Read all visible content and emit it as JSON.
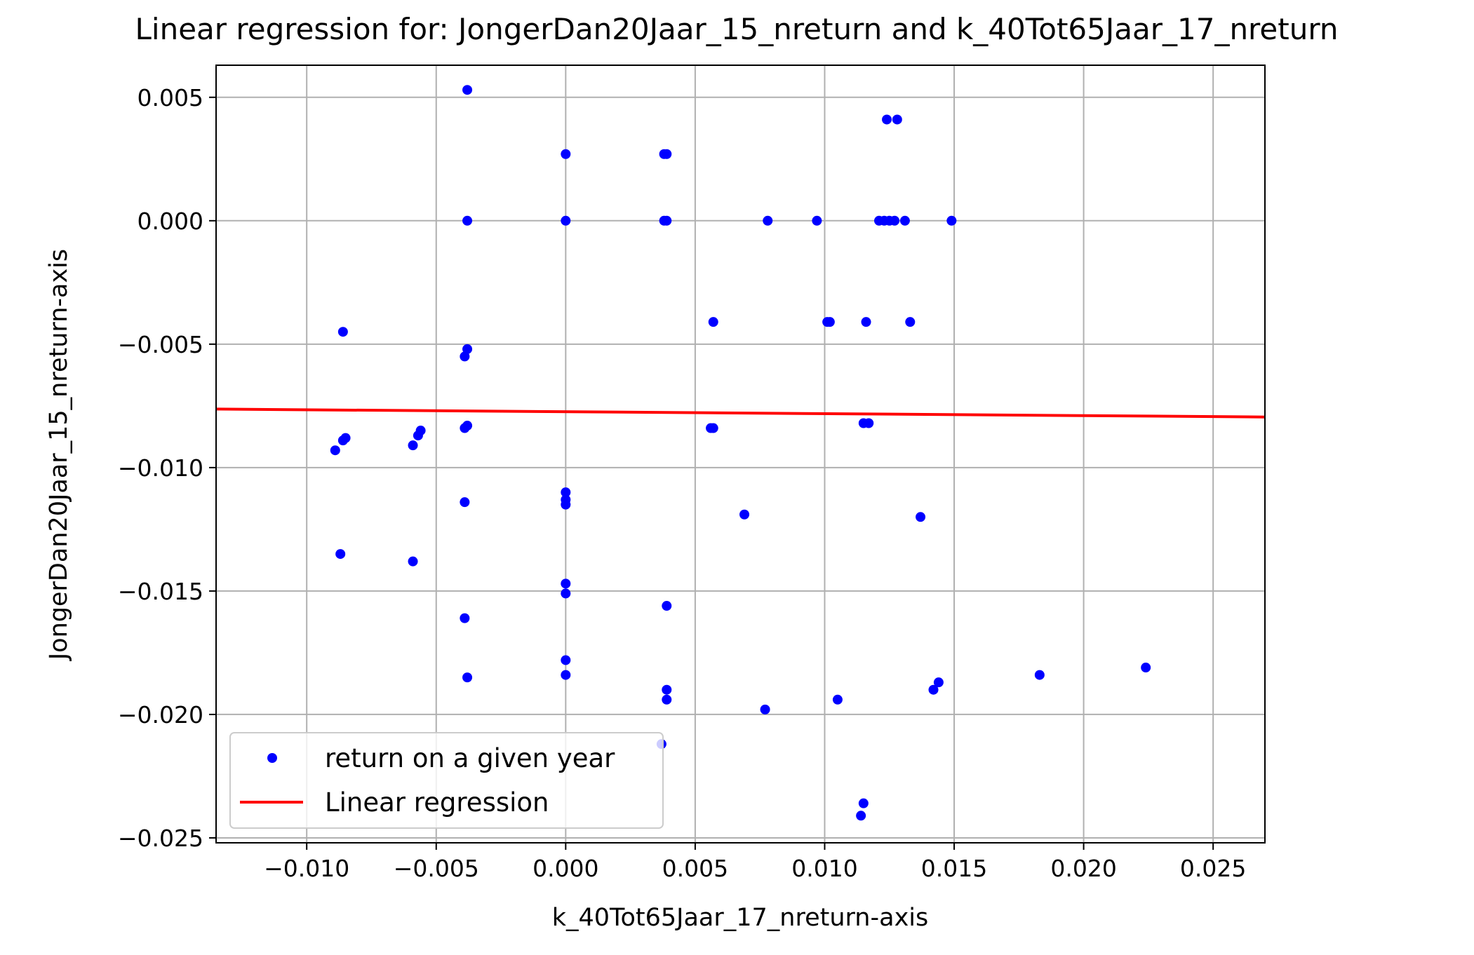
{
  "chart_data": {
    "type": "scatter",
    "title": "Linear regression for: JongerDan20Jaar_15_nreturn and k_40Tot65Jaar_17_nreturn",
    "xlabel": "k_40Tot65Jaar_17_nreturn-axis",
    "ylabel": "JongerDan20Jaar_15_nreturn-axis",
    "xlim": [
      -0.0135,
      0.027
    ],
    "ylim": [
      -0.0252,
      0.0063
    ],
    "xticks": [
      -0.01,
      -0.005,
      0.0,
      0.005,
      0.01,
      0.015,
      0.02,
      0.025
    ],
    "xtick_labels": [
      "−0.010",
      "−0.005",
      "0.000",
      "0.005",
      "0.010",
      "0.015",
      "0.020",
      "0.025"
    ],
    "yticks": [
      0.005,
      0.0,
      -0.005,
      -0.01,
      -0.015,
      -0.02,
      -0.025
    ],
    "ytick_labels": [
      "0.005",
      "0.000",
      "−0.005",
      "−0.010",
      "−0.015",
      "−0.020",
      "−0.025"
    ],
    "grid": true,
    "legend_position": "lower-left",
    "series": [
      {
        "name": "return on a given year",
        "kind": "scatter",
        "color": "#0000ff",
        "points": [
          [
            -0.0038,
            0.0053
          ],
          [
            0.0,
            0.0027
          ],
          [
            0.0038,
            0.0027
          ],
          [
            0.0039,
            0.0027
          ],
          [
            0.0124,
            0.0041
          ],
          [
            0.0128,
            0.0041
          ],
          [
            -0.0038,
            0.0
          ],
          [
            0.0,
            0.0
          ],
          [
            0.0038,
            0.0
          ],
          [
            0.0039,
            0.0
          ],
          [
            0.0078,
            0.0
          ],
          [
            0.0097,
            0.0
          ],
          [
            0.0121,
            0.0
          ],
          [
            0.0123,
            0.0
          ],
          [
            0.0125,
            0.0
          ],
          [
            0.0127,
            0.0
          ],
          [
            0.0131,
            0.0
          ],
          [
            0.0149,
            0.0
          ],
          [
            -0.0086,
            -0.0045
          ],
          [
            0.0057,
            -0.0041
          ],
          [
            0.0101,
            -0.0041
          ],
          [
            0.0102,
            -0.0041
          ],
          [
            0.0116,
            -0.0041
          ],
          [
            0.0133,
            -0.0041
          ],
          [
            -0.0038,
            -0.0052
          ],
          [
            -0.0039,
            -0.0055
          ],
          [
            -0.0089,
            -0.0093
          ],
          [
            -0.0086,
            -0.0089
          ],
          [
            -0.0085,
            -0.0088
          ],
          [
            -0.0059,
            -0.0091
          ],
          [
            -0.0057,
            -0.0087
          ],
          [
            -0.0056,
            -0.0085
          ],
          [
            -0.0038,
            -0.0083
          ],
          [
            -0.0039,
            -0.0084
          ],
          [
            0.0056,
            -0.0084
          ],
          [
            0.0057,
            -0.0084
          ],
          [
            0.0115,
            -0.0082
          ],
          [
            0.0117,
            -0.0082
          ],
          [
            -0.0039,
            -0.0114
          ],
          [
            0.0,
            -0.011
          ],
          [
            0.0,
            -0.0113
          ],
          [
            0.0,
            -0.0115
          ],
          [
            0.0069,
            -0.0119
          ],
          [
            0.0137,
            -0.012
          ],
          [
            -0.0087,
            -0.0135
          ],
          [
            -0.0059,
            -0.0138
          ],
          [
            0.0,
            -0.0147
          ],
          [
            0.0,
            -0.0151
          ],
          [
            0.0039,
            -0.0156
          ],
          [
            -0.0039,
            -0.0161
          ],
          [
            0.0,
            -0.0178
          ],
          [
            0.0,
            -0.0184
          ],
          [
            -0.0038,
            -0.0185
          ],
          [
            0.0183,
            -0.0184
          ],
          [
            0.0224,
            -0.0181
          ],
          [
            0.0039,
            -0.019
          ],
          [
            0.0039,
            -0.0194
          ],
          [
            0.0142,
            -0.019
          ],
          [
            0.0144,
            -0.0187
          ],
          [
            0.0077,
            -0.0198
          ],
          [
            0.0105,
            -0.0194
          ],
          [
            0.0037,
            -0.0212
          ],
          [
            0.0115,
            -0.0236
          ],
          [
            0.0114,
            -0.0241
          ]
        ]
      },
      {
        "name": "Linear regression",
        "kind": "line",
        "color": "#ff0000",
        "points": [
          [
            -0.0135,
            -0.00763
          ],
          [
            0.027,
            -0.00795
          ]
        ]
      }
    ]
  }
}
